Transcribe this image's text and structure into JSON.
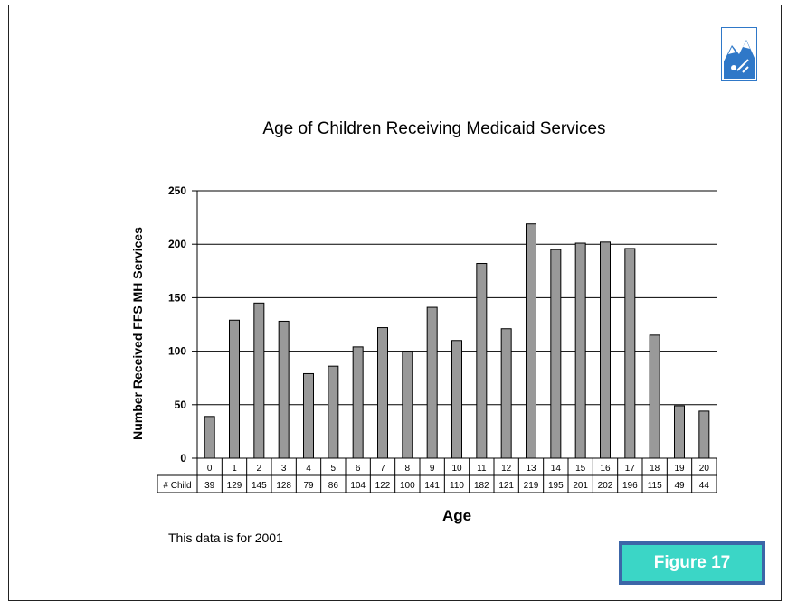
{
  "chart_data": {
    "type": "bar",
    "title": "Age of Children Receiving Medicaid Services",
    "xlabel": "Age",
    "ylabel": "Number Received FFS MH Services",
    "ylim": [
      0,
      250
    ],
    "yticks": [
      0,
      50,
      100,
      150,
      200,
      250
    ],
    "grid": true,
    "categories": [
      "0",
      "1",
      "2",
      "3",
      "4",
      "5",
      "6",
      "7",
      "8",
      "9",
      "10",
      "11",
      "12",
      "13",
      "14",
      "15",
      "16",
      "17",
      "18",
      "19",
      "20"
    ],
    "values": [
      39,
      129,
      145,
      128,
      79,
      86,
      104,
      122,
      100,
      141,
      110,
      182,
      121,
      219,
      195,
      201,
      202,
      196,
      115,
      49,
      44
    ],
    "table_row_label": "# Child",
    "bar_color": "#999999"
  },
  "note": "This data is for 2001",
  "figure_label": "Figure 17",
  "colors": {
    "badge_fill": "#3bd6c6",
    "badge_border": "#3c66a8",
    "logo": "#2f78c8"
  },
  "logo_icon": "mountain-logo-icon"
}
